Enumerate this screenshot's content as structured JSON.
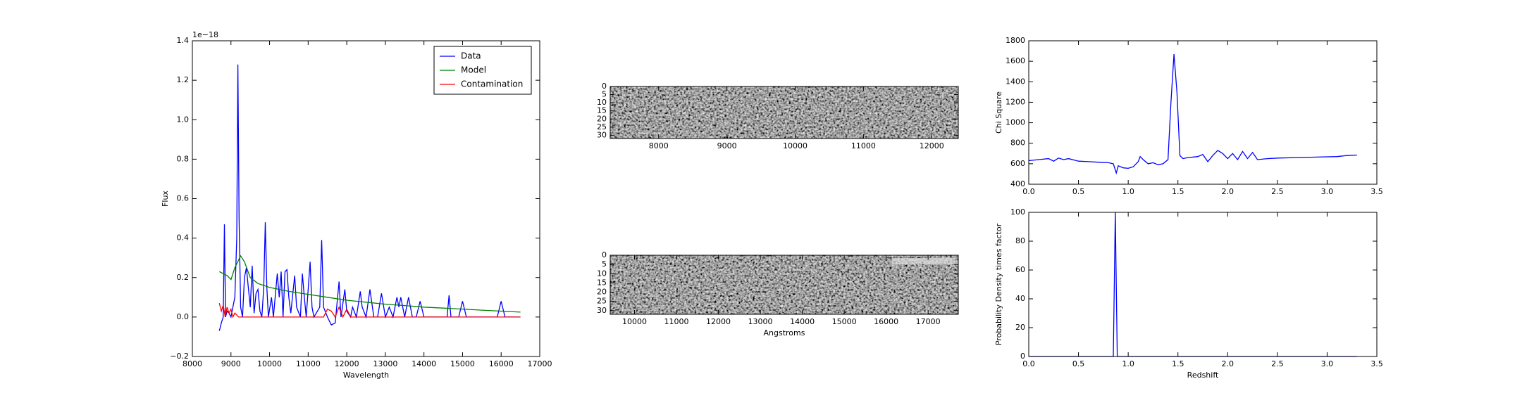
{
  "chart_data": [
    {
      "type": "line",
      "xlabel": "Wavelength",
      "ylabel": "Flux",
      "y_offset_label": "1e−18",
      "xlim": [
        8000,
        17000
      ],
      "xticks": [
        8000,
        9000,
        10000,
        11000,
        12000,
        13000,
        14000,
        15000,
        16000,
        17000
      ],
      "ylim": [
        -0.2,
        1.4
      ],
      "yticks": [
        {
          "value": -0.2,
          "label": "−0.2"
        },
        {
          "value": 0,
          "label": "0.0"
        },
        0.2,
        0.4,
        0.6,
        0.8,
        {
          "value": 1,
          "label": "1.0"
        },
        1.2,
        1.4
      ],
      "legend": "upper right",
      "series": [
        {
          "name": "Data",
          "color": "#0000ff",
          "x": [
            8700,
            8750,
            8800,
            8830,
            8860,
            8900,
            8950,
            9000,
            9050,
            9100,
            9150,
            9180,
            9210,
            9250,
            9300,
            9350,
            9400,
            9450,
            9500,
            9550,
            9600,
            9650,
            9700,
            9750,
            9800,
            9850,
            9890,
            9930,
            9970,
            10050,
            10100,
            10200,
            10250,
            10300,
            10350,
            10400,
            10450,
            10500,
            10550,
            10650,
            10700,
            10800,
            10850,
            10900,
            10950,
            11050,
            11100,
            11150,
            11300,
            11350,
            11400,
            11500,
            11600,
            11700,
            11800,
            11850,
            11950,
            12000,
            12100,
            12150,
            12250,
            12350,
            12400,
            12500,
            12600,
            12700,
            12800,
            12900,
            13000,
            13100,
            13200,
            13300,
            13350,
            13400,
            13500,
            13600,
            13700,
            13800,
            13900,
            14000,
            14300,
            14600,
            14650,
            14700,
            14900,
            15000,
            15100,
            15900,
            16000,
            16100,
            16500
          ],
          "values": [
            -0.07,
            -0.03,
            0.0,
            0.47,
            0.0,
            0.03,
            0.02,
            0.0,
            0.05,
            0.1,
            0.4,
            1.28,
            0.5,
            0.05,
            0.0,
            0.2,
            0.25,
            0.15,
            0.05,
            0.26,
            0.02,
            0.12,
            0.14,
            0.03,
            0.0,
            0.15,
            0.48,
            0.15,
            0.0,
            0.1,
            0.0,
            0.22,
            0.1,
            0.23,
            0.0,
            0.23,
            0.24,
            0.1,
            0.02,
            0.21,
            0.05,
            0.0,
            0.22,
            0.1,
            0.0,
            0.28,
            0.05,
            0.0,
            0.05,
            0.39,
            0.05,
            0.0,
            -0.04,
            -0.03,
            0.18,
            0.0,
            0.14,
            0.03,
            0.0,
            0.05,
            0.0,
            0.13,
            0.05,
            0.0,
            0.14,
            0.0,
            0.0,
            0.12,
            0.0,
            0.05,
            0.0,
            0.1,
            0.05,
            0.1,
            0.0,
            0.1,
            0.0,
            0.0,
            0.08,
            0.0,
            0.0,
            0.0,
            0.11,
            0.0,
            0.0,
            0.08,
            0.0,
            0.0,
            0.08,
            0.0,
            0.0
          ]
        },
        {
          "name": "Model",
          "color": "#008000",
          "x": [
            8700,
            8900,
            9000,
            9100,
            9250,
            9350,
            9500,
            9700,
            10000,
            10500,
            11000,
            11500,
            12000,
            12500,
            13000,
            13500,
            14000,
            14500,
            15000,
            15500,
            16000,
            16500
          ],
          "values": [
            0.23,
            0.21,
            0.19,
            0.25,
            0.31,
            0.28,
            0.2,
            0.17,
            0.15,
            0.13,
            0.115,
            0.1,
            0.085,
            0.075,
            0.065,
            0.058,
            0.05,
            0.045,
            0.04,
            0.035,
            0.03,
            0.025
          ]
        },
        {
          "name": "Contamination",
          "color": "#ff0000",
          "x": [
            8700,
            8750,
            8800,
            8850,
            8900,
            8950,
            9000,
            9050,
            9100,
            9200,
            9500,
            11400,
            11500,
            11600,
            11700,
            11800,
            11900,
            12000,
            12100,
            16500
          ],
          "values": [
            0.07,
            0.03,
            0.06,
            0.0,
            0.05,
            0.02,
            0.04,
            0.0,
            0.02,
            0.0,
            0.0,
            0.0,
            0.04,
            0.03,
            0.0,
            0.05,
            0.0,
            0.04,
            0.0,
            0.0
          ]
        }
      ]
    },
    {
      "type": "image",
      "xlim": [
        7290,
        12390
      ],
      "xticks": [
        8000,
        9000,
        10000,
        11000,
        12000
      ],
      "ylim": [
        32,
        0
      ],
      "yticks": [
        0,
        5,
        10,
        15,
        20,
        25,
        30
      ]
    },
    {
      "type": "image",
      "xlabel": "Angstroms",
      "xlim": [
        9420,
        17720
      ],
      "xticks": [
        10000,
        11000,
        12000,
        13000,
        14000,
        15000,
        16000,
        17000
      ],
      "ylim": [
        32,
        0
      ],
      "yticks": [
        0,
        5,
        10,
        15,
        20,
        25,
        30
      ]
    },
    {
      "type": "line",
      "ylabel": "Chi Square",
      "xlim": [
        0,
        3.5
      ],
      "xticks": [
        {
          "value": 0,
          "label": "0.0"
        },
        0.5,
        {
          "value": 1,
          "label": "1.0"
        },
        1.5,
        {
          "value": 2,
          "label": "2.0"
        },
        2.5,
        {
          "value": 3,
          "label": "3.0"
        },
        3.5
      ],
      "ylim": [
        400,
        1800
      ],
      "yticks": [
        400,
        600,
        800,
        1000,
        1200,
        1400,
        1600,
        1800
      ],
      "series": [
        {
          "color": "#0000ff",
          "x": [
            0,
            0.1,
            0.2,
            0.25,
            0.3,
            0.35,
            0.4,
            0.5,
            0.6,
            0.7,
            0.8,
            0.85,
            0.88,
            0.9,
            0.95,
            1.0,
            1.05,
            1.1,
            1.12,
            1.15,
            1.2,
            1.25,
            1.3,
            1.35,
            1.4,
            1.43,
            1.46,
            1.49,
            1.52,
            1.55,
            1.6,
            1.7,
            1.75,
            1.8,
            1.85,
            1.9,
            1.95,
            2.0,
            2.05,
            2.1,
            2.15,
            2.2,
            2.25,
            2.3,
            2.4,
            2.5,
            2.7,
            2.9,
            3.1,
            3.2,
            3.3
          ],
          "values": [
            630,
            640,
            650,
            625,
            655,
            640,
            650,
            625,
            620,
            615,
            610,
            600,
            510,
            580,
            560,
            555,
            570,
            620,
            670,
            640,
            600,
            610,
            590,
            600,
            640,
            1200,
            1670,
            1300,
            680,
            650,
            660,
            670,
            690,
            620,
            680,
            730,
            700,
            650,
            700,
            640,
            720,
            650,
            710,
            640,
            650,
            655,
            660,
            665,
            670,
            680,
            685
          ]
        }
      ]
    },
    {
      "type": "line",
      "xlabel": "Redshift",
      "ylabel": "Probability Density times factor",
      "xlim": [
        0,
        3.5
      ],
      "xticks": [
        {
          "value": 0,
          "label": "0.0"
        },
        0.5,
        {
          "value": 1,
          "label": "1.0"
        },
        1.5,
        {
          "value": 2,
          "label": "2.0"
        },
        2.5,
        {
          "value": 3,
          "label": "3.0"
        },
        3.5
      ],
      "ylim": [
        0,
        100
      ],
      "yticks": [
        0,
        20,
        40,
        60,
        80,
        100
      ],
      "series": [
        {
          "color": "#0000ff",
          "x": [
            0,
            0.85,
            0.87,
            0.89,
            3.3
          ],
          "values": [
            0,
            0,
            100,
            0,
            0
          ]
        }
      ]
    }
  ]
}
